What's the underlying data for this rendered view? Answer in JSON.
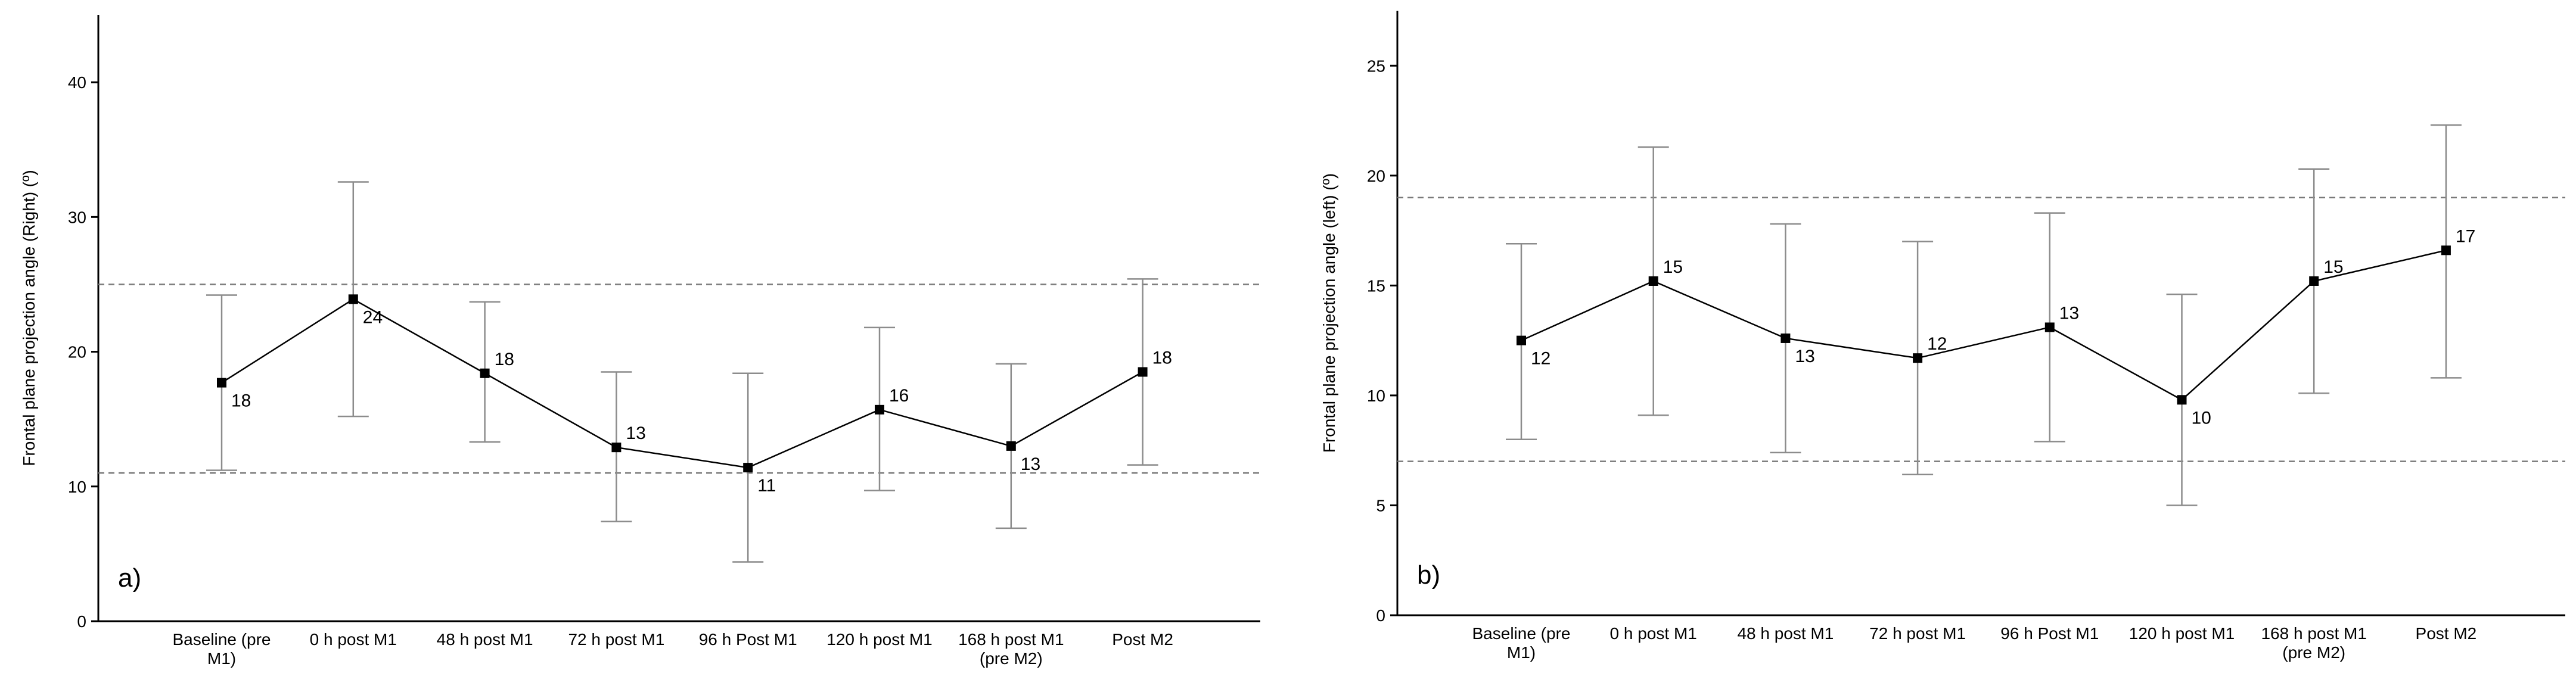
{
  "chart_data": [
    {
      "type": "line",
      "panel_label": "a)",
      "ylabel": "Frontal plane projection angle (Right) (º)",
      "xlabel": "",
      "ylim": [
        0,
        45
      ],
      "yticks": [
        0,
        10,
        20,
        30,
        40
      ],
      "categories": [
        [
          "Baseline (pre",
          "M1)"
        ],
        [
          "0 h post M1"
        ],
        [
          "48 h post M1"
        ],
        [
          "72 h post M1"
        ],
        [
          "96 h Post M1"
        ],
        [
          "120 h post M1"
        ],
        [
          "168 h post M1",
          "(pre M2)"
        ],
        [
          "Post M2"
        ]
      ],
      "values": [
        17.7,
        23.9,
        18.4,
        12.9,
        11.4,
        15.7,
        13.0,
        18.5
      ],
      "errors_upper": [
        24.2,
        32.6,
        23.7,
        18.5,
        18.4,
        21.8,
        19.1,
        25.4
      ],
      "errors_lower": [
        11.2,
        15.2,
        13.3,
        7.4,
        4.4,
        9.7,
        6.9,
        11.6
      ],
      "data_labels": [
        "18",
        "24",
        "18",
        "13",
        "11",
        "16",
        "13",
        "18"
      ],
      "label_positions": [
        "below",
        "below",
        "above",
        "above",
        "below",
        "above",
        "below",
        "above"
      ],
      "reference_lines": [
        25,
        11
      ],
      "grid": false
    },
    {
      "type": "line",
      "panel_label": "b)",
      "ylabel": "Frontal plane projection angle (left) (º)",
      "xlabel": "",
      "ylim": [
        0,
        27.5
      ],
      "yticks": [
        0,
        5,
        10,
        15,
        20,
        25
      ],
      "categories": [
        [
          "Baseline (pre",
          "M1)"
        ],
        [
          "0 h post M1"
        ],
        [
          "48 h post M1"
        ],
        [
          "72 h post M1"
        ],
        [
          "96 h Post M1"
        ],
        [
          "120 h post M1"
        ],
        [
          "168 h post M1",
          "(pre M2)"
        ],
        [
          "Post M2"
        ]
      ],
      "values": [
        12.5,
        15.2,
        12.6,
        11.7,
        13.1,
        9.8,
        15.2,
        16.6
      ],
      "errors_upper": [
        16.9,
        21.3,
        17.8,
        17.0,
        18.3,
        14.6,
        20.3,
        22.3
      ],
      "errors_lower": [
        8.0,
        9.1,
        7.4,
        6.4,
        7.9,
        5.0,
        10.1,
        10.8
      ],
      "data_labels": [
        "12",
        "15",
        "13",
        "12",
        "13",
        "10",
        "15",
        "17"
      ],
      "label_positions": [
        "below",
        "above",
        "below",
        "above",
        "above",
        "below",
        "above",
        "above"
      ],
      "reference_lines": [
        19,
        7
      ],
      "grid": false
    }
  ]
}
